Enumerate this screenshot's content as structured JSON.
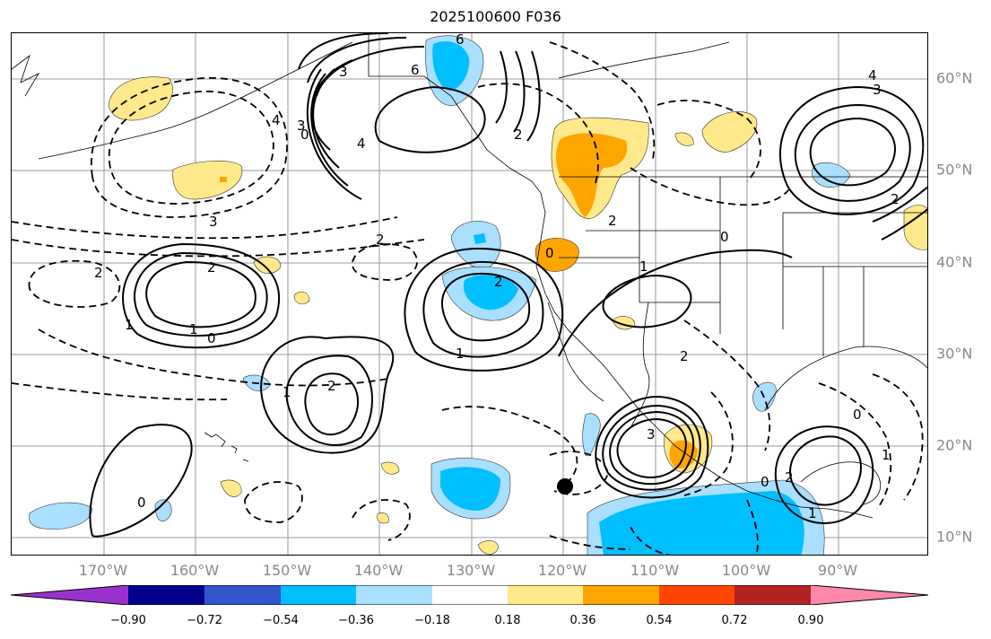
{
  "title": "2025100600 F036",
  "lon_labels": [
    "170°W",
    "160°W",
    "150°W",
    "140°W",
    "130°W",
    "120°W",
    "110°W",
    "100°W",
    "90°W"
  ],
  "lat_labels": [
    "60°N",
    "50°N",
    "40°N",
    "30°N",
    "20°N",
    "10°N"
  ],
  "contour_labels": [
    "6",
    "3",
    "4",
    "3",
    "6",
    "0",
    "4",
    "2",
    "3",
    "2",
    "2",
    "0",
    "1",
    "2",
    "1",
    "0",
    "1",
    "2",
    "2",
    "1",
    "0",
    "1",
    "2",
    "0",
    "3",
    "2",
    "0",
    "2",
    "1",
    "0",
    "1",
    "4",
    "3",
    "2"
  ],
  "colorbar": {
    "colors": [
      "#9932cc",
      "#00008b",
      "#3355cc",
      "#00bfff",
      "#aadfff",
      "#ffffff",
      "#ffe98a",
      "#ffa500",
      "#ff4500",
      "#b22222",
      "#ff88aa"
    ],
    "tick_labels": [
      "−0.90",
      "−0.72",
      "−0.54",
      "−0.36",
      "−0.18",
      "0.18",
      "0.36",
      "0.54",
      "0.72",
      "0.90"
    ]
  }
}
